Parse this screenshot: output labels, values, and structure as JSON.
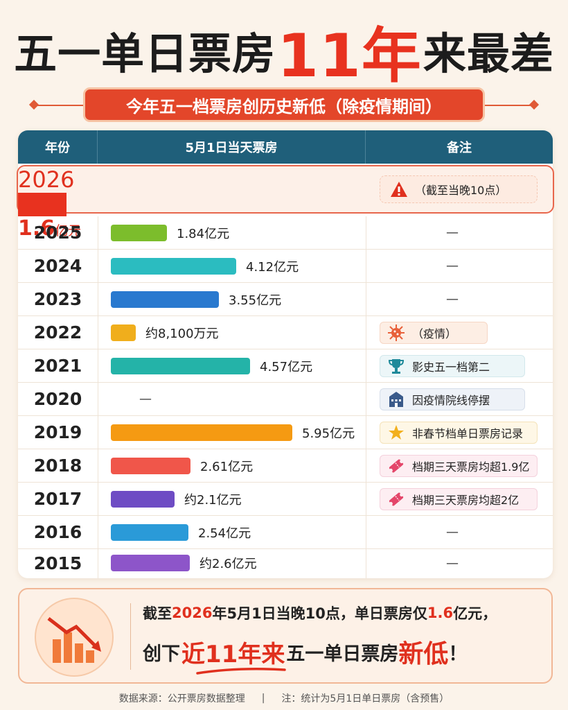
{
  "header": {
    "title_part1": "五一单日票房",
    "title_highlight": "11年",
    "title_part2": "来最差",
    "subtitle": "今年五一档票房创历史新低（除疫情期间）"
  },
  "table": {
    "headers": [
      "年份",
      "5月1日当天票房",
      "备注"
    ],
    "rows": [
      {
        "year": "2026",
        "value_label": "1.6",
        "value_unit": "亿元",
        "note": "（截至当晚10点）",
        "note_icon": "warning-icon",
        "bar_color": "#e8321f"
      },
      {
        "year": "2025",
        "value_label": "1.84亿元",
        "note": "—",
        "bar_color": "#7cbd2c"
      },
      {
        "year": "2024",
        "value_label": "4.12亿元",
        "note": "—",
        "bar_color": "#2bbcc0"
      },
      {
        "year": "2023",
        "value_label": "3.55亿元",
        "note": "—",
        "bar_color": "#2979cf"
      },
      {
        "year": "2022",
        "value_label": "约8,100万元",
        "note": "（疫情）",
        "note_icon": "virus-icon",
        "bar_color": "#f0ae1c"
      },
      {
        "year": "2021",
        "value_label": "4.57亿元",
        "note": "影史五一档第二",
        "note_icon": "trophy-icon",
        "bar_color": "#24b3a8"
      },
      {
        "year": "2020",
        "value_label": "—",
        "note": "因疫情院线停摆",
        "note_icon": "building-icon",
        "bar_color": ""
      },
      {
        "year": "2019",
        "value_label": "5.95亿元",
        "note": "非春节档单日票房记录",
        "note_icon": "star-icon",
        "bar_color": "#f59a12"
      },
      {
        "year": "2018",
        "value_label": "2.61亿元",
        "note": "档期三天票房均超1.9亿",
        "note_icon": "ticket-icon",
        "bar_color": "#f0564a"
      },
      {
        "year": "2017",
        "value_label": "约2.1亿元",
        "note": "档期三天票房均超2亿",
        "note_icon": "ticket-icon",
        "bar_color": "#6e4cc4"
      },
      {
        "year": "2016",
        "value_label": "2.54亿元",
        "note": "—",
        "bar_color": "#2a9ad8"
      },
      {
        "year": "2015",
        "value_label": "约2.6亿元",
        "note": "—",
        "bar_color": "#8d55c9"
      }
    ]
  },
  "chart_data": {
    "type": "bar",
    "title": "五一单日票房11年来最差",
    "categories": [
      "2026",
      "2025",
      "2024",
      "2023",
      "2022",
      "2021",
      "2020",
      "2019",
      "2018",
      "2017",
      "2016",
      "2015"
    ],
    "values": [
      1.6,
      1.84,
      4.12,
      3.55,
      0.81,
      4.57,
      null,
      5.95,
      2.61,
      2.1,
      2.54,
      2.6
    ],
    "xlabel": "年份",
    "ylabel": "5月1日当天票房"
  },
  "footer": {
    "line1_a": "截至",
    "line1_year": "2026",
    "line1_b": "年5月1日当晚10点，单日票房仅",
    "line1_value": "1.6",
    "line1_c": "亿元，",
    "line2_a": "创下",
    "line2_big": "近11年来",
    "line2_b": "五一单日票房",
    "line2_big2": "新低",
    "line2_c": "！"
  },
  "source": {
    "left": "数据来源：公开票房数据整理",
    "sep": "|",
    "right": "注：统计为5月1日单日票房（含预售）"
  },
  "colors": {
    "accent_red": "#e0301e",
    "header_teal": "#1f5f7a"
  }
}
